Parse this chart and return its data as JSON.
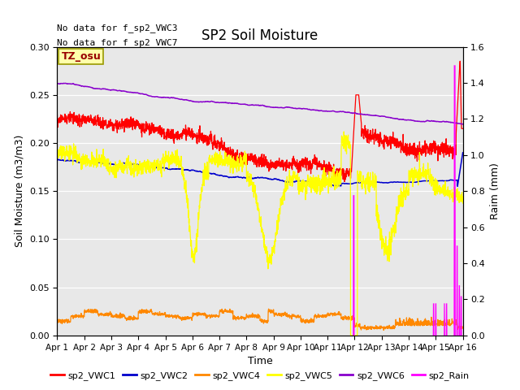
{
  "title": "SP2 Soil Moisture",
  "xlabel": "Time",
  "ylabel_left": "Soil Moisture (m3/m3)",
  "ylabel_right": "Raim (mm)",
  "note_line1": "No data for f_sp2_VWC3",
  "note_line2": "No data for f_sp2_VWC7",
  "tz_label": "TZ_osu",
  "xlim": [
    0,
    15
  ],
  "ylim_left": [
    0.0,
    0.3
  ],
  "ylim_right": [
    0.0,
    1.6
  ],
  "yticks_left": [
    0.0,
    0.05,
    0.1,
    0.15,
    0.2,
    0.25,
    0.3
  ],
  "yticks_right": [
    0.0,
    0.2,
    0.4,
    0.6,
    0.8,
    1.0,
    1.2,
    1.4,
    1.6
  ],
  "xtick_labels": [
    "Apr 1",
    "Apr 2",
    "Apr 3",
    "Apr 4",
    "Apr 5",
    "Apr 6",
    "Apr 7",
    "Apr 8",
    "Apr 9",
    "Apr 10",
    "Apr 11",
    "Apr 12",
    "Apr 13",
    "Apr 14",
    "Apr 15",
    "Apr 16"
  ],
  "colors": {
    "sp2_VWC1": "#ff0000",
    "sp2_VWC2": "#0000cc",
    "sp2_VWC4": "#ff8800",
    "sp2_VWC5": "#ffff00",
    "sp2_VWC6": "#8800cc",
    "sp2_Rain": "#ff00ff"
  },
  "background_color": "#e8e8e8",
  "fig_bg": "#ffffff"
}
